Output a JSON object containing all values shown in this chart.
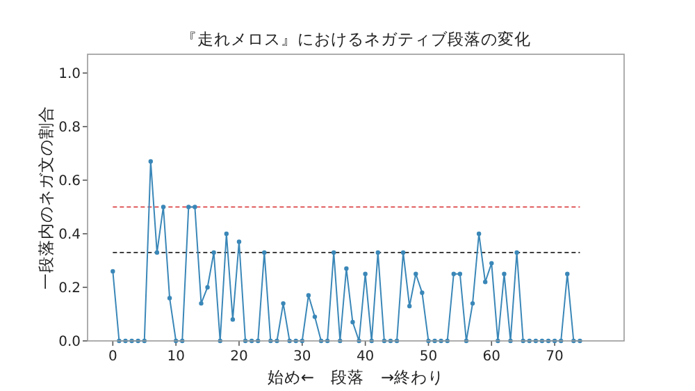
{
  "chart_data": {
    "type": "line",
    "title": "『走れメロス』におけるネガティブ段落の変化",
    "xlabel": "始め←　段落　→終わり",
    "ylabel": "一段落内のネガ文の割合",
    "x": [
      0,
      1,
      2,
      3,
      4,
      5,
      6,
      7,
      8,
      9,
      10,
      11,
      12,
      13,
      14,
      15,
      16,
      17,
      18,
      19,
      20,
      21,
      22,
      23,
      24,
      25,
      26,
      27,
      28,
      29,
      30,
      31,
      32,
      33,
      34,
      35,
      36,
      37,
      38,
      39,
      40,
      41,
      42,
      43,
      44,
      45,
      46,
      47,
      48,
      49,
      50,
      51,
      52,
      53,
      54,
      55,
      56,
      57,
      58,
      59,
      60,
      61,
      62,
      63,
      64,
      65,
      66,
      67,
      68,
      69,
      70,
      71,
      72,
      73,
      74
    ],
    "series": [
      {
        "color": "#3a87b8",
        "values": [
          0.26,
          0,
          0,
          0,
          0,
          0,
          0.67,
          0.33,
          0.5,
          0.16,
          0,
          0,
          0.5,
          0.5,
          0.14,
          0.2,
          0.33,
          0,
          0.4,
          0.08,
          0.37,
          0,
          0,
          0,
          0.33,
          0,
          0,
          0.14,
          0,
          0,
          0,
          0.17,
          0.09,
          0,
          0,
          0.33,
          0,
          0.27,
          0.07,
          0,
          0.25,
          0,
          0.33,
          0,
          0,
          0,
          0.33,
          0.13,
          0.25,
          0.18,
          0,
          0,
          0,
          0,
          0.25,
          0.25,
          0,
          0.14,
          0.4,
          0.22,
          0.29,
          0,
          0.25,
          0,
          0.33,
          0,
          0,
          0,
          0,
          0,
          0,
          0,
          0.25,
          0,
          0
        ]
      }
    ],
    "marker": "circle",
    "line_style": "solid",
    "grid": false,
    "xlim": [
      -4,
      81
    ],
    "ylim": [
      0,
      1.07
    ],
    "xticks": [
      0,
      10,
      20,
      30,
      40,
      50,
      60,
      70
    ],
    "yticks": [
      {
        "value": 0,
        "label": "0.0"
      },
      {
        "value": 0.2,
        "label": "0.2"
      },
      {
        "value": 0.4,
        "label": "0.4"
      },
      {
        "value": 0.6,
        "label": "0.6"
      },
      {
        "value": 0.8,
        "label": "0.8"
      },
      {
        "value": 1,
        "label": "1.0"
      }
    ],
    "ref_lines": [
      {
        "axis": "y",
        "value": 0.5,
        "color": "#d62728",
        "line_style": "dashed"
      },
      {
        "axis": "y",
        "value": 0.33,
        "color": "#000000",
        "line_style": "dashed"
      }
    ]
  }
}
